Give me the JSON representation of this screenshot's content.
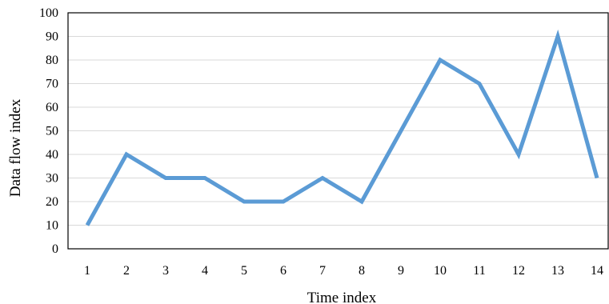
{
  "chart_data": {
    "type": "line",
    "title": "",
    "xlabel": "Time index",
    "ylabel": "Data flow index",
    "x": [
      1,
      2,
      3,
      4,
      5,
      6,
      7,
      8,
      9,
      10,
      11,
      12,
      13,
      14
    ],
    "series": [
      {
        "values": [
          10,
          40,
          30,
          30,
          20,
          20,
          30,
          20,
          50,
          80,
          70,
          40,
          90,
          30
        ]
      }
    ],
    "ylim": [
      0,
      100
    ],
    "yticks": [
      0,
      10,
      20,
      30,
      40,
      50,
      60,
      70,
      80,
      90,
      100
    ],
    "grid": "horizontal",
    "legend": "none",
    "colors": {
      "line": "#5b9bd5",
      "grid": "#d9d9d9",
      "frame": "#000000"
    }
  }
}
